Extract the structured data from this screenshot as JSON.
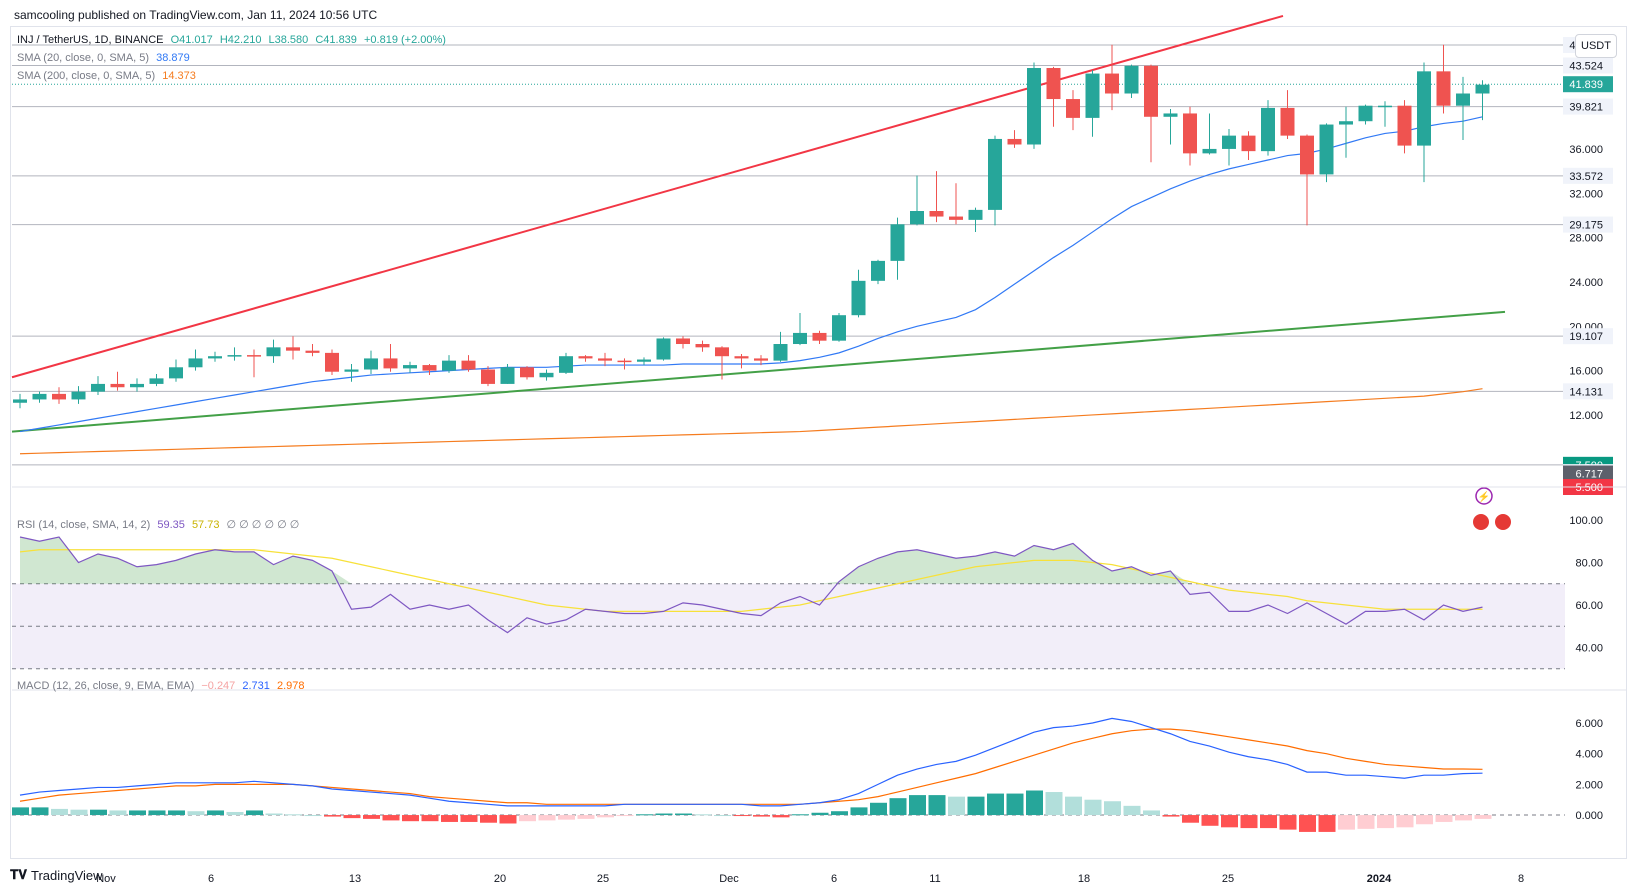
{
  "header": {
    "publisher": "samcooling published on TradingView.com, Jan 11, 2024 10:56 UTC"
  },
  "footer": {
    "brand": "TradingView"
  },
  "currency_button": "USDT",
  "legend": {
    "symbol": "INJ / TetherUS, 1D, BINANCE",
    "open": "O41.017",
    "high": "H42.210",
    "low": "L38.580",
    "close": "C41.839",
    "change": "+0.819 (+2.00%)",
    "sma20": "SMA (20, close, 0, SMA, 5)",
    "sma20_val": "38.879",
    "sma200": "SMA (200, close, 0, SMA, 5)",
    "sma200_val": "14.373",
    "rsi": "RSI (14, close, SMA, 14, 2)",
    "rsi_val": "59.35",
    "rsi_ma_val": "57.73",
    "rsi_extra": "∅ ∅ ∅ ∅ ∅ ∅",
    "macd": "MACD (12, 26, close, 9, EMA, EMA)",
    "macd_hist": "−0.247",
    "macd_line": "2.731",
    "macd_signal": "2.978"
  },
  "colors": {
    "up": "#26a69a",
    "down": "#ef5350",
    "sma20": "#3179f5",
    "sma200": "#f57c1f",
    "resist": "#f23645",
    "support": "#43a047",
    "rsi": "#7e57c2",
    "rsi_ma": "#f7e13a",
    "macd": "#2962ff",
    "signal": "#ff6d00"
  },
  "chart_data": [
    {
      "type": "candlestick",
      "title": "INJ / TetherUS, 1D, BINANCE",
      "x_tick_labels": [
        "Nov",
        "6",
        "13",
        "20",
        "25",
        "Dec",
        "6",
        "11",
        "18",
        "25",
        "2024",
        "8"
      ],
      "y_tick_labels": [
        "12.000",
        "16.000",
        "20.000",
        "24.000",
        "28.000",
        "32.000",
        "36.000"
      ],
      "price_labels": [
        "45.375",
        "43.524",
        "41.839",
        "39.821",
        "33.572",
        "29.175",
        "19.107",
        "14.131",
        "7.500",
        "6.841",
        "6.717",
        "5.500"
      ],
      "ylim": [
        5.5,
        47
      ],
      "candles": [
        [
          13.1,
          13.4,
          13.9,
          12.6
        ],
        [
          13.4,
          13.9,
          14.1,
          13.1
        ],
        [
          13.9,
          13.4,
          14.5,
          13.0
        ],
        [
          13.4,
          14.1,
          14.6,
          13.0
        ],
        [
          14.1,
          14.8,
          15.5,
          13.8
        ],
        [
          14.8,
          14.5,
          15.9,
          14.2
        ],
        [
          14.5,
          14.8,
          15.3,
          14.1
        ],
        [
          14.8,
          15.3,
          15.7,
          14.6
        ],
        [
          15.3,
          16.3,
          17.0,
          15.0
        ],
        [
          16.3,
          17.1,
          17.9,
          16.0
        ],
        [
          17.1,
          17.3,
          17.7,
          16.8
        ],
        [
          17.3,
          17.4,
          18.1,
          16.9
        ],
        [
          17.4,
          17.3,
          17.9,
          15.4
        ],
        [
          17.3,
          18.1,
          18.8,
          16.7
        ],
        [
          18.1,
          17.8,
          19.1,
          17.0
        ],
        [
          17.8,
          17.6,
          18.4,
          17.3
        ],
        [
          17.6,
          15.9,
          17.9,
          15.6
        ],
        [
          15.9,
          16.1,
          16.6,
          15.0
        ],
        [
          16.1,
          17.1,
          17.8,
          15.7
        ],
        [
          17.1,
          16.2,
          18.4,
          15.9
        ],
        [
          16.2,
          16.5,
          16.8,
          15.8
        ],
        [
          16.5,
          16.0,
          16.6,
          15.6
        ],
        [
          16.0,
          16.9,
          17.4,
          15.8
        ],
        [
          16.9,
          16.1,
          17.4,
          15.9
        ],
        [
          16.1,
          14.8,
          16.4,
          14.6
        ],
        [
          14.8,
          16.3,
          16.6,
          14.8
        ],
        [
          16.3,
          15.4,
          16.4,
          15.2
        ],
        [
          15.4,
          15.8,
          16.1,
          15.1
        ],
        [
          15.8,
          17.3,
          17.6,
          15.7
        ],
        [
          17.3,
          17.1,
          17.4,
          16.8
        ],
        [
          17.1,
          16.9,
          17.6,
          16.4
        ],
        [
          16.9,
          16.8,
          17.1,
          16.1
        ],
        [
          16.8,
          17.0,
          17.2,
          16.5
        ],
        [
          17.0,
          18.9,
          19.0,
          16.9
        ],
        [
          18.9,
          18.4,
          19.1,
          18.0
        ],
        [
          18.4,
          18.1,
          18.7,
          17.7
        ],
        [
          18.1,
          17.3,
          18.2,
          15.2
        ],
        [
          17.3,
          17.1,
          17.5,
          16.2
        ],
        [
          17.1,
          16.9,
          17.4,
          16.5
        ],
        [
          16.9,
          18.4,
          19.5,
          16.8
        ],
        [
          18.4,
          19.4,
          21.2,
          18.3
        ],
        [
          19.4,
          18.7,
          19.6,
          18.4
        ],
        [
          18.7,
          21.0,
          21.2,
          18.6
        ],
        [
          21.0,
          24.1,
          25.1,
          20.8
        ],
        [
          24.1,
          25.9,
          26.0,
          23.8
        ],
        [
          25.9,
          29.2,
          29.8,
          24.2
        ],
        [
          29.2,
          30.4,
          33.6,
          29.1
        ],
        [
          30.4,
          29.9,
          34.0,
          29.4
        ],
        [
          29.9,
          29.6,
          32.9,
          29.2
        ],
        [
          29.6,
          30.5,
          30.7,
          28.5
        ],
        [
          30.5,
          36.9,
          37.2,
          29.1
        ],
        [
          36.9,
          36.4,
          37.7,
          36.1
        ],
        [
          36.4,
          43.3,
          43.8,
          36.0
        ],
        [
          43.3,
          40.5,
          43.4,
          38.0
        ],
        [
          40.5,
          38.8,
          41.3,
          37.7
        ],
        [
          38.8,
          42.8,
          43.1,
          37.1
        ],
        [
          42.8,
          41.0,
          45.4,
          39.5
        ],
        [
          41.0,
          43.5,
          43.6,
          40.6
        ],
        [
          43.5,
          38.9,
          43.6,
          34.8
        ],
        [
          38.9,
          39.2,
          39.6,
          36.4
        ],
        [
          39.2,
          35.6,
          39.8,
          34.5
        ],
        [
          35.6,
          36.0,
          39.2,
          35.5
        ],
        [
          36.0,
          37.2,
          37.8,
          34.5
        ],
        [
          37.2,
          35.8,
          37.6,
          35.0
        ],
        [
          35.8,
          39.7,
          40.4,
          35.4
        ],
        [
          39.7,
          37.2,
          41.3,
          36.9
        ],
        [
          37.2,
          33.7,
          37.3,
          29.1
        ],
        [
          33.7,
          38.2,
          38.3,
          33.0
        ],
        [
          38.2,
          38.5,
          39.8,
          35.2
        ],
        [
          38.5,
          39.9,
          40.0,
          38.2
        ],
        [
          39.9,
          39.9,
          40.3,
          38.0
        ],
        [
          39.9,
          36.3,
          40.4,
          35.6
        ],
        [
          36.3,
          43.0,
          43.8,
          33.0
        ],
        [
          43.0,
          39.9,
          45.4,
          39.2
        ],
        [
          39.9,
          41.0,
          42.5,
          36.8
        ],
        [
          41.0,
          41.8,
          42.2,
          38.6
        ]
      ],
      "sma20": [
        10.5,
        10.8,
        11.1,
        11.4,
        11.7,
        12.0,
        12.3,
        12.6,
        12.9,
        13.2,
        13.5,
        13.8,
        14.1,
        14.4,
        14.7,
        15.0,
        15.2,
        15.4,
        15.6,
        15.7,
        15.8,
        15.9,
        16.0,
        16.1,
        16.2,
        16.3,
        16.3,
        16.3,
        16.4,
        16.5,
        16.5,
        16.5,
        16.5,
        16.5,
        16.6,
        16.6,
        16.6,
        16.6,
        16.6,
        16.7,
        16.9,
        17.2,
        17.6,
        18.2,
        18.9,
        19.5,
        20.0,
        20.4,
        20.8,
        21.5,
        22.6,
        23.8,
        25.0,
        26.2,
        27.3,
        28.5,
        29.7,
        30.8,
        31.6,
        32.4,
        33.1,
        33.7,
        34.2,
        34.6,
        35.0,
        35.4,
        35.6,
        36.0,
        36.5,
        37.0,
        37.4,
        37.6,
        38.0,
        38.3,
        38.5,
        38.9
      ],
      "sma200": [
        8.5,
        8.55,
        8.6,
        8.65,
        8.7,
        8.75,
        8.8,
        8.85,
        8.9,
        8.95,
        9.0,
        9.05,
        9.1,
        9.15,
        9.2,
        9.25,
        9.3,
        9.35,
        9.4,
        9.45,
        9.5,
        9.55,
        9.6,
        9.65,
        9.7,
        9.75,
        9.8,
        9.85,
        9.9,
        9.95,
        10.0,
        10.05,
        10.1,
        10.15,
        10.2,
        10.25,
        10.3,
        10.35,
        10.4,
        10.45,
        10.5,
        10.6,
        10.7,
        10.8,
        10.9,
        11.0,
        11.1,
        11.2,
        11.3,
        11.4,
        11.5,
        11.6,
        11.7,
        11.8,
        11.9,
        12.0,
        12.1,
        12.2,
        12.3,
        12.4,
        12.5,
        12.6,
        12.7,
        12.8,
        12.9,
        13.0,
        13.1,
        13.2,
        13.3,
        13.4,
        13.5,
        13.6,
        13.7,
        13.9,
        14.1,
        14.37
      ]
    },
    {
      "type": "line",
      "title": "RSI (14, close, SMA, 14, 2)",
      "y_tick_labels": [
        "40.00",
        "60.00",
        "80.00",
        "100.00"
      ],
      "ylim": [
        20,
        100
      ],
      "rsi": [
        92,
        90,
        92,
        80,
        84,
        82,
        78,
        79,
        81,
        84,
        86,
        85,
        85,
        79,
        83,
        81,
        76,
        58,
        59,
        65,
        58,
        60,
        58,
        60,
        53,
        47,
        54,
        51,
        53,
        58,
        57,
        56,
        56,
        57,
        61,
        60,
        58,
        56,
        55,
        61,
        64,
        60,
        71,
        78,
        82,
        85,
        86,
        84,
        82,
        83,
        85,
        83,
        88,
        86,
        89,
        81,
        76,
        78,
        74,
        76,
        65,
        66,
        57,
        57,
        60,
        56,
        61,
        56,
        51,
        57,
        57,
        58,
        53,
        60,
        57,
        59
      ],
      "rsi_ma": [
        85,
        86,
        86,
        86,
        86,
        86,
        86,
        86,
        86,
        86,
        86,
        86,
        86,
        85,
        84,
        83,
        82,
        80,
        78,
        76,
        74,
        72,
        70,
        68,
        66,
        64,
        62,
        60,
        59,
        58,
        57,
        57,
        57,
        57,
        57,
        57,
        57,
        57,
        58,
        59,
        60,
        62,
        64,
        66,
        68,
        70,
        72,
        74,
        76,
        78,
        79,
        80,
        81,
        81,
        81,
        80,
        79,
        77,
        75,
        73,
        71,
        69,
        67,
        66,
        65,
        64,
        62,
        61,
        60,
        59,
        58,
        58,
        58,
        58,
        58,
        58
      ]
    },
    {
      "type": "line",
      "title": "MACD (12, 26, close, 9, EMA, EMA)",
      "y_tick_labels": [
        "0.000",
        "2.000",
        "4.000",
        "6.000"
      ],
      "ylim": [
        -2.8,
        7.5
      ],
      "macd": [
        1.3,
        1.5,
        1.6,
        1.7,
        1.8,
        1.8,
        1.9,
        2.0,
        2.1,
        2.1,
        2.1,
        2.1,
        2.2,
        2.1,
        2.0,
        1.9,
        1.7,
        1.6,
        1.5,
        1.4,
        1.3,
        1.1,
        0.9,
        0.8,
        0.7,
        0.6,
        0.6,
        0.6,
        0.6,
        0.6,
        0.6,
        0.7,
        0.7,
        0.7,
        0.7,
        0.7,
        0.7,
        0.7,
        0.6,
        0.6,
        0.7,
        0.8,
        1.0,
        1.4,
        2.0,
        2.6,
        3.0,
        3.3,
        3.5,
        3.9,
        4.4,
        4.9,
        5.4,
        5.7,
        5.8,
        6.0,
        6.3,
        6.1,
        5.7,
        5.3,
        4.8,
        4.5,
        4.1,
        3.8,
        3.6,
        3.3,
        2.8,
        2.8,
        2.6,
        2.6,
        2.5,
        2.4,
        2.6,
        2.6,
        2.7,
        2.73
      ],
      "signal": [
        0.9,
        1.1,
        1.3,
        1.4,
        1.5,
        1.6,
        1.7,
        1.8,
        1.9,
        1.9,
        2.0,
        2.0,
        2.0,
        2.0,
        2.0,
        1.9,
        1.8,
        1.7,
        1.6,
        1.5,
        1.4,
        1.2,
        1.1,
        1.0,
        0.9,
        0.8,
        0.8,
        0.7,
        0.7,
        0.7,
        0.7,
        0.7,
        0.7,
        0.7,
        0.7,
        0.7,
        0.7,
        0.7,
        0.7,
        0.7,
        0.7,
        0.8,
        0.9,
        1.0,
        1.2,
        1.5,
        1.8,
        2.1,
        2.4,
        2.7,
        3.1,
        3.5,
        3.9,
        4.3,
        4.7,
        5.0,
        5.3,
        5.5,
        5.6,
        5.6,
        5.5,
        5.3,
        5.1,
        4.9,
        4.7,
        4.5,
        4.2,
        4.0,
        3.7,
        3.5,
        3.3,
        3.2,
        3.1,
        3.0,
        3.0,
        2.98
      ],
      "hist": [
        0.5,
        0.5,
        0.4,
        0.35,
        0.35,
        0.3,
        0.3,
        0.3,
        0.3,
        0.25,
        0.3,
        0.2,
        0.3,
        0.1,
        0.05,
        0.0,
        -0.1,
        -0.2,
        -0.25,
        -0.35,
        -0.4,
        -0.4,
        -0.45,
        -0.45,
        -0.5,
        -0.55,
        -0.4,
        -0.35,
        -0.3,
        -0.25,
        -0.15,
        -0.05,
        0.05,
        0.1,
        0.1,
        0.05,
        0.0,
        -0.05,
        -0.1,
        -0.15,
        0.05,
        0.15,
        0.25,
        0.5,
        0.8,
        1.1,
        1.3,
        1.3,
        1.2,
        1.2,
        1.4,
        1.4,
        1.6,
        1.5,
        1.2,
        1.0,
        0.9,
        0.6,
        0.3,
        -0.1,
        -0.5,
        -0.7,
        -0.8,
        -0.85,
        -0.85,
        -0.95,
        -1.1,
        -1.1,
        -0.95,
        -0.9,
        -0.85,
        -0.8,
        -0.6,
        -0.45,
        -0.35,
        -0.25
      ]
    }
  ]
}
